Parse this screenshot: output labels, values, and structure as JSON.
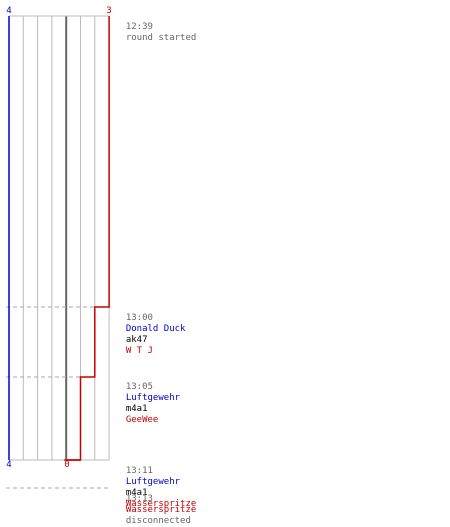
{
  "colors": {
    "team_a": "#0000cc",
    "team_b": "#cc0000",
    "grid": "#bbbbbb",
    "center": "#666666",
    "dashed": "#aaaaaa",
    "time": "#666666",
    "weapon": "#000000"
  },
  "chart_data": {
    "type": "line",
    "title": "",
    "xlabel": "",
    "ylabel": "",
    "xlim": [
      -4,
      3
    ],
    "tick_labels": {
      "top_left": "4",
      "top_right": "3",
      "bottom_left": "4",
      "bottom_center": "0"
    },
    "series": [
      {
        "team": "team_a",
        "points": [
          {
            "time": "12:39",
            "value": -4
          },
          {
            "time": "13:11",
            "value": -4
          }
        ]
      },
      {
        "team": "team_b",
        "points": [
          {
            "time": "12:39",
            "value": 3
          },
          {
            "time": "13:00",
            "value": 3
          },
          {
            "time": "13:00",
            "value": 2
          },
          {
            "time": "13:05",
            "value": 2
          },
          {
            "time": "13:05",
            "value": 1
          },
          {
            "time": "13:11",
            "value": 1
          },
          {
            "time": "13:11",
            "value": 0
          }
        ]
      }
    ]
  },
  "events": [
    {
      "time": "12:39",
      "text": "round started"
    },
    {
      "time": "13:00",
      "player_a": "Donald Duck",
      "weapon": "ak47",
      "player_b": "W T J"
    },
    {
      "time": "13:05",
      "player_a": "Luftgewehr",
      "weapon": "m4a1",
      "player_b": "GeeWee"
    },
    {
      "time": "13:11",
      "player_a": "Luftgewehr",
      "weapon": "m4a1",
      "player_b": "Wasserspritze"
    },
    {
      "time": "13:13",
      "player_b": "Wasserspritze",
      "text": "disconnected"
    }
  ]
}
